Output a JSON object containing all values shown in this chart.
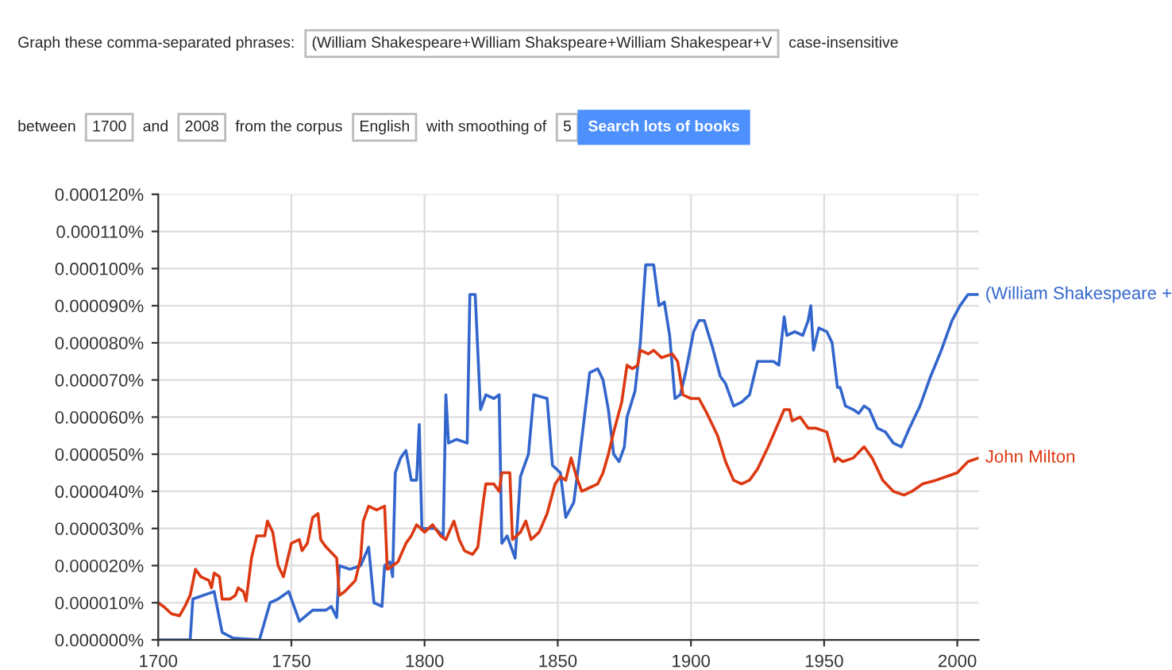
{
  "chart_data": {
    "type": "line",
    "annotations": [
      "Graph these comma-separated phrases:",
      "(William Shakespeare+William Shakspeare+William Shakespear+V",
      "case-insensitive",
      "between",
      "1700",
      "and",
      "2008",
      "from the corpus",
      "English",
      "with smoothing of",
      "5",
      "Search lots of books"
    ],
    "xlim": [
      1700,
      2008
    ],
    "xticks": [
      1700,
      1750,
      1800,
      1850,
      1900,
      1950,
      2000
    ],
    "ylim": [
      0,
      0.00012
    ],
    "yticks": [
      {
        "value": 0,
        "label": "0.000000%"
      },
      {
        "value": 1e-05,
        "label": "0.000010%"
      },
      {
        "value": 2e-05,
        "label": "0.000020%"
      },
      {
        "value": 3e-05,
        "label": "0.000030%"
      },
      {
        "value": 4e-05,
        "label": "0.000040%"
      },
      {
        "value": 5e-05,
        "label": "0.000050%"
      },
      {
        "value": 6e-05,
        "label": "0.000060%"
      },
      {
        "value": 7e-05,
        "label": "0.000070%"
      },
      {
        "value": 8e-05,
        "label": "0.000080%"
      },
      {
        "value": 9e-05,
        "label": "0.000090%"
      },
      {
        "value": 0.0001,
        "label": "0.000100%"
      },
      {
        "value": 0.00011,
        "label": "0.000110%"
      },
      {
        "value": 0.00012,
        "label": "0.000120%"
      }
    ],
    "grid": true,
    "legend": false,
    "series": [
      {
        "name": "(William Shakespeare +",
        "color": "#3366cc",
        "x": [
          1700,
          1712,
          1713,
          1717,
          1721,
          1724,
          1728,
          1738,
          1742,
          1745,
          1749,
          1753,
          1758,
          1763,
          1765,
          1767,
          1768,
          1772,
          1776,
          1779,
          1781,
          1784,
          1785,
          1787,
          1788,
          1789,
          1791,
          1793,
          1795,
          1797,
          1798,
          1799,
          1804,
          1807,
          1808,
          1809,
          1812,
          1816,
          1817,
          1819,
          1821,
          1823,
          1826,
          1828,
          1829,
          1831,
          1833,
          1834,
          1836,
          1839,
          1841,
          1846,
          1848,
          1851,
          1853,
          1856,
          1858,
          1862,
          1865,
          1867,
          1869,
          1871,
          1873,
          1875,
          1876,
          1879,
          1881,
          1883,
          1886,
          1888,
          1890,
          1892,
          1894,
          1896,
          1898,
          1901,
          1903,
          1905,
          1908,
          1911,
          1913,
          1916,
          1919,
          1922,
          1925,
          1931,
          1933,
          1935,
          1936,
          1939,
          1942,
          1944,
          1945,
          1946,
          1948,
          1951,
          1953,
          1955,
          1956,
          1958,
          1961,
          1963,
          1965,
          1967,
          1970,
          1973,
          1976,
          1979,
          1982,
          1986,
          1990,
          1994,
          1998,
          2001,
          2004,
          2008
        ],
        "values": [
          0,
          0,
          1.1e-05,
          1.2e-05,
          1.3e-05,
          2e-06,
          5e-07,
          0,
          1e-05,
          1.1e-05,
          1.3e-05,
          5e-06,
          8e-06,
          8e-06,
          9e-06,
          6e-06,
          2e-05,
          1.9e-05,
          2e-05,
          2.5e-05,
          1e-05,
          9e-06,
          2e-05,
          2.1e-05,
          1.7e-05,
          4.5e-05,
          4.9e-05,
          5.1e-05,
          4.3e-05,
          4.3e-05,
          5.8e-05,
          3e-05,
          3e-05,
          2.8e-05,
          6.6e-05,
          5.3e-05,
          5.4e-05,
          5.3e-05,
          9.3e-05,
          9.3e-05,
          6.2e-05,
          6.6e-05,
          6.5e-05,
          6.6e-05,
          2.6e-05,
          2.8e-05,
          2.4e-05,
          2.2e-05,
          4.4e-05,
          5e-05,
          6.6e-05,
          6.5e-05,
          4.7e-05,
          4.5e-05,
          3.3e-05,
          3.7e-05,
          4.8e-05,
          7.2e-05,
          7.3e-05,
          7e-05,
          6.2e-05,
          5e-05,
          4.8e-05,
          5.2e-05,
          6e-05,
          6.7e-05,
          8e-05,
          0.000101,
          0.000101,
          9e-05,
          9.1e-05,
          8.2e-05,
          6.5e-05,
          6.6e-05,
          7.2e-05,
          8.3e-05,
          8.6e-05,
          8.6e-05,
          7.9e-05,
          7.1e-05,
          6.9e-05,
          6.3e-05,
          6.4e-05,
          6.6e-05,
          7.5e-05,
          7.5e-05,
          7.4e-05,
          8.7e-05,
          8.2e-05,
          8.3e-05,
          8.2e-05,
          8.6e-05,
          9e-05,
          7.8e-05,
          8.4e-05,
          8.3e-05,
          8e-05,
          6.8e-05,
          6.8e-05,
          6.3e-05,
          6.2e-05,
          6.1e-05,
          6.3e-05,
          6.2e-05,
          5.7e-05,
          5.6e-05,
          5.3e-05,
          5.2e-05,
          5.7e-05,
          6.3e-05,
          7.1e-05,
          7.8e-05,
          8.6e-05,
          9e-05,
          9.3e-05,
          9.3e-05
        ]
      },
      {
        "name": "John Milton",
        "color": "#dc3912",
        "x": [
          1700,
          1702,
          1705,
          1708,
          1710,
          1712,
          1714,
          1716,
          1719,
          1720,
          1721,
          1723,
          1724,
          1727,
          1729,
          1730,
          1732,
          1733,
          1735,
          1737,
          1740,
          1741,
          1743,
          1745,
          1747,
          1750,
          1753,
          1754,
          1756,
          1758,
          1760,
          1761,
          1763,
          1767,
          1768,
          1770,
          1774,
          1776,
          1777,
          1779,
          1782,
          1785,
          1786,
          1788,
          1790,
          1793,
          1795,
          1797,
          1800,
          1803,
          1806,
          1808,
          1811,
          1813,
          1815,
          1818,
          1820,
          1822,
          1823,
          1826,
          1828,
          1829,
          1832,
          1833,
          1836,
          1838,
          1840,
          1843,
          1846,
          1849,
          1851,
          1853,
          1855,
          1857,
          1859,
          1862,
          1865,
          1867,
          1869,
          1871,
          1874,
          1876,
          1878,
          1880,
          1881,
          1884,
          1886,
          1889,
          1893,
          1895,
          1897,
          1900,
          1903,
          1906,
          1910,
          1913,
          1916,
          1919,
          1922,
          1925,
          1929,
          1932,
          1935,
          1937,
          1938,
          1941,
          1944,
          1947,
          1951,
          1954,
          1955,
          1957,
          1961,
          1965,
          1968,
          1972,
          1976,
          1980,
          1983,
          1987,
          1992,
          1996,
          2000,
          2004,
          2008
        ],
        "values": [
          1e-05,
          9e-06,
          7e-06,
          6.5e-06,
          9e-06,
          1.2e-05,
          1.9e-05,
          1.7e-05,
          1.6e-05,
          1.4e-05,
          1.8e-05,
          1.7e-05,
          1.1e-05,
          1.1e-05,
          1.2e-05,
          1.4e-05,
          1.3e-05,
          1.05e-05,
          2.2e-05,
          2.8e-05,
          2.8e-05,
          3.2e-05,
          2.9e-05,
          2e-05,
          1.7e-05,
          2.6e-05,
          2.7e-05,
          2.4e-05,
          2.6e-05,
          3.3e-05,
          3.4e-05,
          2.7e-05,
          2.5e-05,
          2.2e-05,
          1.2e-05,
          1.3e-05,
          1.6e-05,
          2.2e-05,
          3.2e-05,
          3.6e-05,
          3.5e-05,
          3.6e-05,
          1.9e-05,
          2e-05,
          2.1e-05,
          2.6e-05,
          2.8e-05,
          3.1e-05,
          2.9e-05,
          3.1e-05,
          2.8e-05,
          2.7e-05,
          3.2e-05,
          2.7e-05,
          2.4e-05,
          2.3e-05,
          2.5e-05,
          3.7e-05,
          4.2e-05,
          4.2e-05,
          4e-05,
          4.5e-05,
          4.5e-05,
          2.7e-05,
          2.9e-05,
          3.2e-05,
          2.7e-05,
          2.9e-05,
          3.4e-05,
          4.2e-05,
          4.4e-05,
          4.3e-05,
          4.9e-05,
          4.4e-05,
          4e-05,
          4.1e-05,
          4.2e-05,
          4.5e-05,
          5e-05,
          5.6e-05,
          6.4e-05,
          7.4e-05,
          7.3e-05,
          7.4e-05,
          7.8e-05,
          7.7e-05,
          7.8e-05,
          7.6e-05,
          7.7e-05,
          7.5e-05,
          6.6e-05,
          6.5e-05,
          6.5e-05,
          6.1e-05,
          5.5e-05,
          4.8e-05,
          4.3e-05,
          4.2e-05,
          4.3e-05,
          4.6e-05,
          5.2e-05,
          5.7e-05,
          6.2e-05,
          6.2e-05,
          5.9e-05,
          6e-05,
          5.7e-05,
          5.7e-05,
          5.6e-05,
          4.8e-05,
          4.9e-05,
          4.8e-05,
          4.9e-05,
          5.2e-05,
          4.9e-05,
          4.3e-05,
          4e-05,
          3.9e-05,
          4e-05,
          4.2e-05,
          4.3e-05,
          4.4e-05,
          4.5e-05,
          4.8e-05,
          4.9e-05
        ]
      }
    ]
  }
}
